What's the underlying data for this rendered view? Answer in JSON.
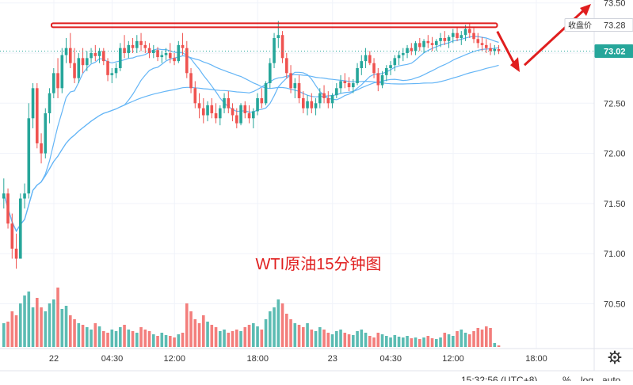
{
  "chart_data": {
    "type": "candlestick",
    "annotation_title": "WTI原油15分钟图",
    "y_axis": {
      "range": [
        70.2,
        73.55
      ],
      "ticks": [
        "70.50",
        "71.00",
        "71.50",
        "72.00",
        "72.50",
        "73.00",
        "73.50"
      ],
      "tick_values": [
        70.5,
        71.0,
        71.5,
        72.0,
        72.5,
        73.0,
        73.5
      ]
    },
    "x_axis": {
      "ticks": [
        "22",
        "04:30",
        "12:00",
        "18:00",
        "23",
        "04:30",
        "12:00",
        "18:00"
      ],
      "tick_bars": [
        12,
        26,
        41,
        61,
        79,
        93,
        108,
        128
      ]
    },
    "price_badges": [
      {
        "value": 73.28,
        "label": "收盘价",
        "display": "73.28",
        "bg": "#ffffff",
        "fg": "#333333"
      },
      {
        "value": 73.02,
        "label": "",
        "display": "73.02",
        "bg": "#26a69a",
        "fg": "#ffffff"
      }
    ],
    "resistance_line": {
      "value": 73.27,
      "from_bar": 12,
      "to_bar": 118,
      "color": "#e01e1e"
    },
    "forecast_arrows": [
      {
        "direction": "up",
        "color": "#e01e1e"
      },
      {
        "direction": "down",
        "color": "#e01e1e"
      }
    ],
    "colors": {
      "up": "#26a69a",
      "down": "#ef5350",
      "ma": "#64b5f6",
      "grid": "#f0f3fa",
      "axis_text": "#333333"
    },
    "bar_count": 120,
    "ohlc": [
      [
        71.55,
        71.75,
        71.45,
        71.6
      ],
      [
        71.6,
        71.65,
        71.25,
        71.3
      ],
      [
        71.3,
        71.4,
        70.95,
        71.05
      ],
      [
        71.05,
        71.2,
        70.85,
        70.95
      ],
      [
        70.95,
        71.6,
        70.95,
        71.55
      ],
      [
        71.55,
        71.7,
        71.45,
        71.6
      ],
      [
        71.6,
        72.5,
        71.55,
        72.35
      ],
      [
        72.35,
        72.7,
        72.25,
        72.65
      ],
      [
        72.65,
        72.7,
        72.05,
        72.1
      ],
      [
        72.1,
        72.2,
        71.9,
        72.0
      ],
      [
        72.0,
        72.45,
        71.95,
        72.4
      ],
      [
        72.4,
        72.65,
        72.3,
        72.6
      ],
      [
        72.6,
        72.85,
        72.55,
        72.8
      ],
      [
        72.8,
        72.95,
        72.55,
        72.65
      ],
      [
        72.65,
        73.05,
        72.6,
        72.98
      ],
      [
        72.98,
        73.15,
        72.9,
        73.05
      ],
      [
        73.05,
        73.2,
        72.85,
        72.9
      ],
      [
        72.9,
        73.05,
        72.7,
        72.75
      ],
      [
        72.75,
        73.0,
        72.7,
        72.95
      ],
      [
        72.95,
        73.05,
        72.8,
        72.88
      ],
      [
        72.88,
        73.02,
        72.82,
        72.95
      ],
      [
        72.95,
        73.05,
        72.9,
        73.0
      ],
      [
        73.0,
        73.08,
        72.92,
        72.97
      ],
      [
        72.97,
        73.05,
        72.9,
        73.02
      ],
      [
        73.02,
        73.05,
        72.88,
        72.92
      ],
      [
        72.92,
        72.95,
        72.72,
        72.78
      ],
      [
        72.78,
        72.85,
        72.7,
        72.8
      ],
      [
        72.8,
        72.9,
        72.75,
        72.85
      ],
      [
        72.85,
        73.1,
        72.82,
        73.05
      ],
      [
        73.05,
        73.18,
        72.95,
        73.0
      ],
      [
        73.0,
        73.12,
        72.95,
        73.08
      ],
      [
        73.08,
        73.15,
        73.0,
        73.05
      ],
      [
        73.05,
        73.18,
        73.0,
        73.12
      ],
      [
        73.12,
        73.2,
        73.02,
        73.08
      ],
      [
        73.08,
        73.12,
        73.0,
        73.05
      ],
      [
        73.05,
        73.1,
        72.95,
        73.0
      ],
      [
        73.0,
        73.08,
        72.95,
        73.03
      ],
      [
        73.03,
        73.06,
        72.92,
        72.96
      ],
      [
        72.96,
        73.02,
        72.9,
        72.98
      ],
      [
        72.98,
        73.05,
        72.93,
        73.0
      ],
      [
        73.0,
        73.1,
        72.9,
        72.95
      ],
      [
        72.95,
        73.0,
        72.88,
        72.92
      ],
      [
        72.92,
        73.12,
        72.9,
        73.08
      ],
      [
        73.08,
        73.2,
        72.98,
        73.05
      ],
      [
        73.05,
        73.12,
        72.75,
        72.8
      ],
      [
        72.8,
        72.85,
        72.6,
        72.65
      ],
      [
        72.65,
        72.72,
        72.45,
        72.5
      ],
      [
        72.5,
        72.6,
        72.35,
        72.45
      ],
      [
        72.45,
        72.55,
        72.3,
        72.38
      ],
      [
        72.38,
        72.52,
        72.32,
        72.48
      ],
      [
        72.48,
        72.55,
        72.35,
        72.4
      ],
      [
        72.4,
        72.5,
        72.3,
        72.35
      ],
      [
        72.35,
        72.48,
        72.28,
        72.45
      ],
      [
        72.45,
        72.6,
        72.4,
        72.55
      ],
      [
        72.55,
        72.62,
        72.4,
        72.45
      ],
      [
        72.45,
        72.5,
        72.32,
        72.38
      ],
      [
        72.38,
        72.45,
        72.25,
        72.3
      ],
      [
        72.3,
        72.5,
        72.28,
        72.48
      ],
      [
        72.48,
        72.52,
        72.35,
        72.4
      ],
      [
        72.4,
        72.48,
        72.3,
        72.35
      ],
      [
        72.35,
        72.45,
        72.25,
        72.42
      ],
      [
        72.42,
        72.6,
        72.38,
        72.55
      ],
      [
        72.55,
        72.65,
        72.45,
        72.5
      ],
      [
        72.5,
        72.72,
        72.48,
        72.7
      ],
      [
        72.7,
        72.95,
        72.65,
        72.9
      ],
      [
        72.9,
        73.2,
        72.85,
        73.15
      ],
      [
        73.15,
        73.32,
        73.05,
        73.18
      ],
      [
        73.18,
        73.22,
        72.9,
        72.95
      ],
      [
        72.95,
        73.0,
        72.75,
        72.8
      ],
      [
        72.8,
        72.88,
        72.6,
        72.65
      ],
      [
        72.65,
        72.75,
        72.55,
        72.7
      ],
      [
        72.7,
        72.78,
        72.5,
        72.55
      ],
      [
        72.55,
        72.62,
        72.4,
        72.45
      ],
      [
        72.45,
        72.58,
        72.38,
        72.52
      ],
      [
        72.52,
        72.6,
        72.4,
        72.45
      ],
      [
        72.45,
        72.55,
        72.38,
        72.5
      ],
      [
        72.5,
        72.65,
        72.45,
        72.6
      ],
      [
        72.6,
        72.68,
        72.5,
        72.55
      ],
      [
        72.55,
        72.62,
        72.45,
        72.5
      ],
      [
        72.5,
        72.6,
        72.45,
        72.58
      ],
      [
        72.58,
        72.7,
        72.55,
        72.65
      ],
      [
        72.65,
        72.78,
        72.6,
        72.72
      ],
      [
        72.72,
        72.8,
        72.65,
        72.7
      ],
      [
        72.7,
        72.76,
        72.62,
        72.66
      ],
      [
        72.66,
        72.74,
        72.6,
        72.7
      ],
      [
        72.7,
        72.9,
        72.68,
        72.85
      ],
      [
        72.85,
        72.98,
        72.78,
        72.92
      ],
      [
        72.92,
        73.05,
        72.85,
        72.98
      ],
      [
        72.98,
        73.02,
        72.88,
        72.9
      ],
      [
        72.9,
        72.95,
        72.75,
        72.8
      ],
      [
        72.8,
        72.85,
        72.62,
        72.68
      ],
      [
        72.68,
        72.82,
        72.65,
        72.78
      ],
      [
        72.78,
        72.88,
        72.72,
        72.85
      ],
      [
        72.85,
        72.92,
        72.78,
        72.88
      ],
      [
        72.88,
        72.98,
        72.82,
        72.95
      ],
      [
        72.95,
        73.02,
        72.88,
        72.98
      ],
      [
        72.98,
        73.05,
        72.92,
        73.0
      ],
      [
        73.0,
        73.08,
        72.95,
        73.05
      ],
      [
        73.05,
        73.1,
        72.98,
        73.02
      ],
      [
        73.02,
        73.12,
        72.98,
        73.1
      ],
      [
        73.1,
        73.15,
        73.02,
        73.06
      ],
      [
        73.06,
        73.14,
        73.0,
        73.12
      ],
      [
        73.12,
        73.18,
        73.05,
        73.1
      ],
      [
        73.1,
        73.16,
        73.02,
        73.08
      ],
      [
        73.08,
        73.14,
        73.02,
        73.12
      ],
      [
        73.12,
        73.2,
        73.06,
        73.15
      ],
      [
        73.15,
        73.22,
        73.08,
        73.12
      ],
      [
        73.12,
        73.18,
        73.05,
        73.16
      ],
      [
        73.16,
        73.24,
        73.1,
        73.2
      ],
      [
        73.2,
        73.26,
        73.12,
        73.15
      ],
      [
        73.15,
        73.22,
        73.08,
        73.18
      ],
      [
        73.18,
        73.28,
        73.12,
        73.24
      ],
      [
        73.24,
        73.3,
        73.15,
        73.2
      ],
      [
        73.2,
        73.25,
        73.1,
        73.14
      ],
      [
        73.14,
        73.2,
        73.05,
        73.1
      ],
      [
        73.1,
        73.16,
        73.02,
        73.08
      ],
      [
        73.08,
        73.14,
        73.0,
        73.05
      ],
      [
        73.05,
        73.1,
        72.98,
        73.02
      ],
      [
        73.02,
        73.08,
        72.98,
        73.04
      ],
      [
        73.04,
        73.08,
        72.99,
        73.02
      ]
    ],
    "volume": [
      0.3,
      0.32,
      0.45,
      0.4,
      0.55,
      0.65,
      0.7,
      0.5,
      0.62,
      0.5,
      0.45,
      0.55,
      0.6,
      0.75,
      0.48,
      0.52,
      0.4,
      0.35,
      0.3,
      0.28,
      0.25,
      0.22,
      0.3,
      0.26,
      0.2,
      0.18,
      0.22,
      0.2,
      0.25,
      0.28,
      0.22,
      0.2,
      0.18,
      0.25,
      0.22,
      0.2,
      0.16,
      0.14,
      0.18,
      0.15,
      0.14,
      0.12,
      0.16,
      0.18,
      0.55,
      0.45,
      0.35,
      0.3,
      0.4,
      0.32,
      0.28,
      0.25,
      0.2,
      0.22,
      0.18,
      0.2,
      0.22,
      0.2,
      0.25,
      0.28,
      0.3,
      0.26,
      0.22,
      0.35,
      0.45,
      0.5,
      0.6,
      0.55,
      0.42,
      0.35,
      0.3,
      0.28,
      0.25,
      0.3,
      0.22,
      0.2,
      0.25,
      0.22,
      0.18,
      0.16,
      0.2,
      0.22,
      0.18,
      0.16,
      0.15,
      0.2,
      0.22,
      0.18,
      0.14,
      0.12,
      0.18,
      0.16,
      0.14,
      0.12,
      0.15,
      0.13,
      0.12,
      0.14,
      0.11,
      0.12,
      0.1,
      0.12,
      0.14,
      0.11,
      0.1,
      0.12,
      0.18,
      0.16,
      0.14,
      0.2,
      0.22,
      0.18,
      0.16,
      0.2,
      0.24,
      0.22,
      0.26,
      0.24,
      0.05,
      0.02
    ],
    "ma_periods": [
      10,
      30,
      60
    ]
  },
  "bottom_bar": {
    "timestamp": "15:32:56 (UTC+8)",
    "percent_label": "%",
    "log_label": "log",
    "auto_label": "auto"
  },
  "settings_icon": "gear-icon"
}
